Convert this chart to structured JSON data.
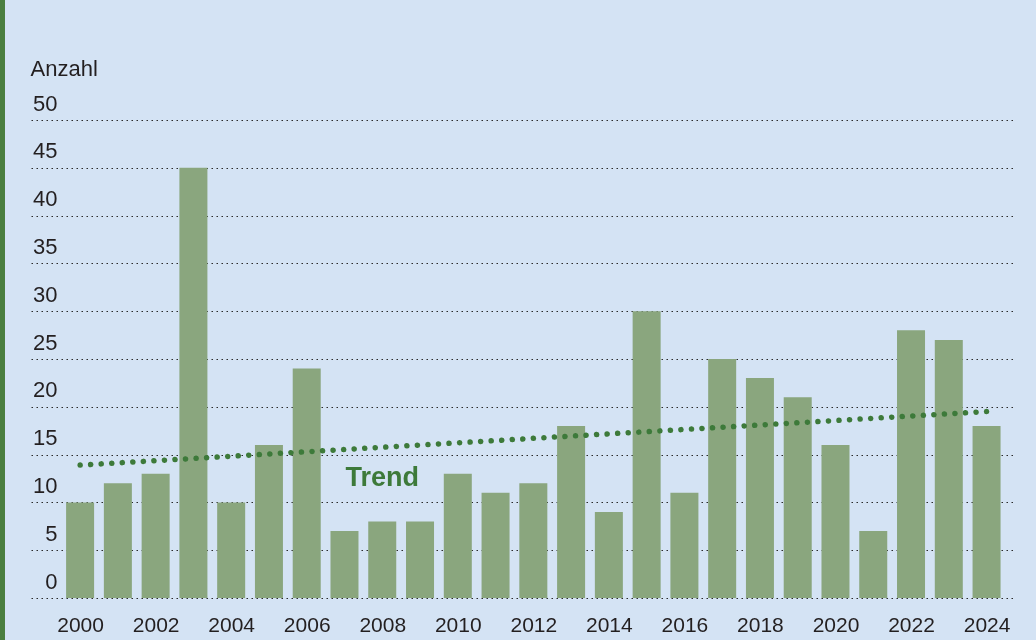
{
  "chart_data": {
    "type": "bar",
    "ylabel": "Anzahl",
    "x": [
      2000,
      2001,
      2002,
      2003,
      2004,
      2005,
      2006,
      2007,
      2008,
      2009,
      2010,
      2011,
      2012,
      2013,
      2014,
      2015,
      2016,
      2017,
      2018,
      2019,
      2020,
      2021,
      2022,
      2023,
      2024
    ],
    "series": [
      {
        "color": "#8aa67e",
        "values": [
          10,
          12,
          13,
          45,
          10,
          16,
          24,
          7,
          8,
          8,
          13,
          11,
          12,
          18,
          9,
          30,
          11,
          25,
          23,
          21,
          16,
          7,
          28,
          27,
          18
        ]
      },
      {
        "name": "Trend",
        "type": "line",
        "color": "#3d7a3a",
        "line_style": "dotted",
        "x": [
          2000,
          2024
        ],
        "values": [
          13.9,
          19.5
        ]
      }
    ],
    "xlim": [
      1998.7,
      2024.7
    ],
    "xticks": [
      2000,
      2002,
      2004,
      2006,
      2008,
      2010,
      2012,
      2014,
      2016,
      2018,
      2020,
      2022,
      2024
    ],
    "ylim": [
      0,
      50
    ],
    "yticks": [
      0,
      5,
      10,
      15,
      20,
      25,
      30,
      35,
      40,
      45,
      50
    ],
    "grid": "y"
  }
}
